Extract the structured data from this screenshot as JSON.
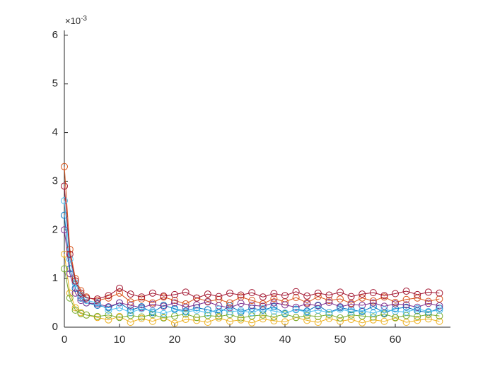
{
  "chart_data": {
    "type": "line",
    "marker": "circle",
    "y_exponent_base": "×10",
    "y_exponent": "-3",
    "x": [
      0,
      1,
      2,
      3,
      4,
      6,
      8,
      10,
      12,
      14,
      16,
      18,
      20,
      22,
      24,
      26,
      28,
      30,
      32,
      34,
      36,
      38,
      40,
      42,
      44,
      46,
      48,
      50,
      52,
      54,
      56,
      58,
      60,
      62,
      64,
      66,
      68
    ],
    "series": [
      {
        "color": "#0072BD",
        "values": [
          2.3,
          1.2,
          0.8,
          0.6,
          0.5,
          0.45,
          0.4,
          0.5,
          0.35,
          0.42,
          0.3,
          0.45,
          0.38,
          0.33,
          0.4,
          0.36,
          0.29,
          0.44,
          0.31,
          0.39,
          0.35,
          0.42,
          0.28,
          0.37,
          0.33,
          0.45,
          0.3,
          0.4,
          0.36,
          0.32,
          0.43,
          0.29,
          0.38,
          0.41,
          0.34,
          0.3,
          0.39
        ]
      },
      {
        "color": "#D95319",
        "values": [
          3.3,
          1.6,
          1.0,
          0.75,
          0.62,
          0.55,
          0.6,
          0.7,
          0.52,
          0.58,
          0.5,
          0.62,
          0.55,
          0.48,
          0.6,
          0.53,
          0.57,
          0.5,
          0.62,
          0.55,
          0.48,
          0.59,
          0.52,
          0.61,
          0.5,
          0.63,
          0.55,
          0.58,
          0.49,
          0.6,
          0.54,
          0.62,
          0.51,
          0.57,
          0.6,
          0.53,
          0.58
        ]
      },
      {
        "color": "#EDB120",
        "values": [
          1.5,
          0.7,
          0.4,
          0.3,
          0.25,
          0.2,
          0.15,
          0.22,
          0.1,
          0.18,
          0.12,
          0.2,
          0.08,
          0.16,
          0.14,
          0.1,
          0.19,
          0.12,
          0.15,
          0.09,
          0.17,
          0.13,
          0.11,
          0.2,
          0.14,
          0.1,
          0.18,
          0.12,
          0.16,
          0.09,
          0.15,
          0.12,
          0.19,
          0.1,
          0.14,
          0.17,
          0.12
        ]
      },
      {
        "color": "#7E2F8E",
        "values": [
          2.0,
          1.1,
          0.7,
          0.55,
          0.5,
          0.48,
          0.42,
          0.5,
          0.45,
          0.4,
          0.47,
          0.43,
          0.5,
          0.41,
          0.46,
          0.52,
          0.44,
          0.4,
          0.49,
          0.45,
          0.43,
          0.5,
          0.46,
          0.41,
          0.48,
          0.44,
          0.51,
          0.42,
          0.47,
          0.45,
          0.5,
          0.43,
          0.48,
          0.46,
          0.41,
          0.49,
          0.44
        ]
      },
      {
        "color": "#77AC30",
        "values": [
          1.2,
          0.6,
          0.35,
          0.28,
          0.25,
          0.22,
          0.25,
          0.2,
          0.24,
          0.21,
          0.26,
          0.19,
          0.23,
          0.27,
          0.2,
          0.24,
          0.22,
          0.26,
          0.19,
          0.23,
          0.25,
          0.21,
          0.27,
          0.2,
          0.24,
          0.22,
          0.26,
          0.19,
          0.25,
          0.23,
          0.21,
          0.27,
          0.2,
          0.24,
          0.22,
          0.26,
          0.23
        ]
      },
      {
        "color": "#4DBEEE",
        "values": [
          2.6,
          1.4,
          0.9,
          0.65,
          0.55,
          0.5,
          0.35,
          0.4,
          0.3,
          0.38,
          0.33,
          0.28,
          0.36,
          0.31,
          0.35,
          0.29,
          0.37,
          0.32,
          0.34,
          0.3,
          0.38,
          0.33,
          0.29,
          0.36,
          0.31,
          0.35,
          0.3,
          0.37,
          0.32,
          0.34,
          0.29,
          0.36,
          0.33,
          0.31,
          0.38,
          0.32,
          0.35
        ]
      },
      {
        "color": "#A2142F",
        "values": [
          2.9,
          1.5,
          0.95,
          0.7,
          0.6,
          0.58,
          0.65,
          0.8,
          0.68,
          0.62,
          0.7,
          0.64,
          0.67,
          0.72,
          0.6,
          0.68,
          0.63,
          0.7,
          0.66,
          0.71,
          0.62,
          0.69,
          0.65,
          0.73,
          0.64,
          0.7,
          0.66,
          0.72,
          0.63,
          0.68,
          0.71,
          0.65,
          0.69,
          0.74,
          0.67,
          0.72,
          0.7
        ]
      }
    ],
    "xlim": [
      0,
      70
    ],
    "ylim": [
      0,
      6.1
    ],
    "xticks": [
      0,
      10,
      20,
      30,
      40,
      50,
      60
    ],
    "yticks": [
      0,
      1,
      2,
      3,
      4,
      5,
      6
    ]
  }
}
